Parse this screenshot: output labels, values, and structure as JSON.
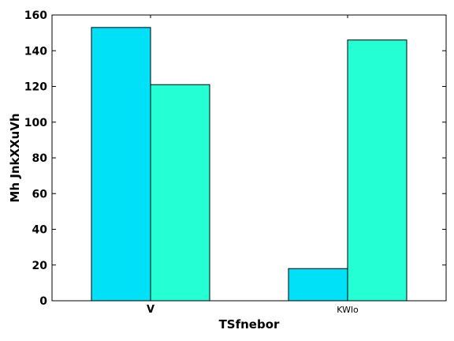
{
  "chart_data": {
    "type": "bar",
    "title": "",
    "xlabel": "TSfnebor",
    "ylabel": "Mh JnkXXuVh",
    "categories": [
      "V",
      "KWlo"
    ],
    "series": [
      {
        "values": [
          153,
          18
        ],
        "color": "#00e1f8"
      },
      {
        "values": [
          121,
          146
        ],
        "color": "#24ffd4"
      }
    ],
    "ylim": [
      0,
      160
    ],
    "yticks": [
      0,
      20,
      40,
      60,
      80,
      100,
      120,
      140,
      160
    ],
    "grid": false,
    "legend": "none"
  }
}
